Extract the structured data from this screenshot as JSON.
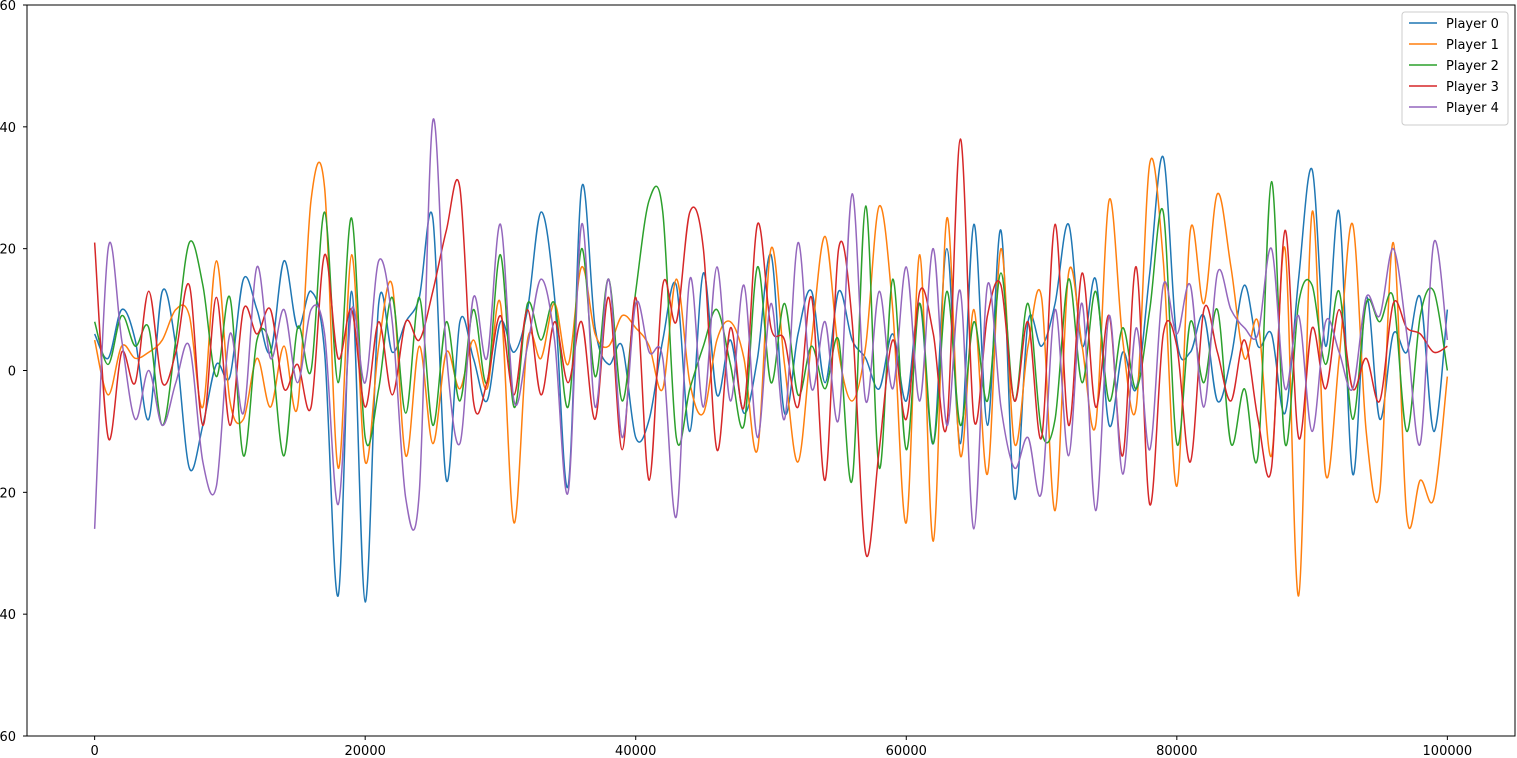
{
  "chart_data": {
    "type": "line",
    "title": "",
    "xlabel": "",
    "ylabel": "",
    "xlim": [
      -5000,
      105000
    ],
    "ylim": [
      -60,
      60
    ],
    "x_ticks": [
      0,
      20000,
      40000,
      60000,
      80000,
      100000
    ],
    "y_ticks": [
      -60,
      -40,
      -20,
      0,
      20,
      40,
      60
    ],
    "x_tick_labels": [
      "0",
      "20000",
      "40000",
      "60000",
      "80000",
      "100000"
    ],
    "y_tick_labels": [
      "60",
      "40",
      "20",
      "0",
      "20",
      "40",
      "60"
    ],
    "grid": false,
    "legend": "top-right",
    "x_step": 1000,
    "series": [
      {
        "name": "Player 0",
        "color": "#1f77b4",
        "values": [
          6,
          2,
          10,
          5,
          -8,
          13,
          4,
          -16,
          -9,
          1,
          -1,
          15,
          10,
          3,
          18,
          7,
          13,
          3,
          -37,
          13,
          -38,
          11,
          3,
          8,
          12,
          25,
          -18,
          8,
          2,
          -5,
          8,
          3,
          10,
          26,
          12,
          -19,
          30,
          7,
          1,
          4,
          -11,
          -8,
          5,
          14,
          -10,
          16,
          -4,
          5,
          -7,
          2,
          19,
          -7,
          6,
          13,
          -2,
          13,
          5,
          2,
          -3,
          6,
          -5,
          11,
          -12,
          20,
          -12,
          24,
          -9,
          23,
          -21,
          8,
          4,
          11,
          24,
          4,
          15,
          -9,
          3,
          -3,
          16,
          35,
          5,
          3,
          9,
          -5,
          2,
          14,
          4,
          6,
          -7,
          15,
          33,
          4,
          26,
          -17,
          12,
          -8,
          6,
          3,
          12,
          -10,
          10
        ]
      },
      {
        "name": "Player 1",
        "color": "#ff7f0e",
        "values": [
          5,
          -4,
          4,
          2,
          3,
          5,
          10,
          9,
          -6,
          18,
          -5,
          -8,
          2,
          -6,
          4,
          -6,
          28,
          30,
          -16,
          19,
          -15,
          4,
          14,
          -14,
          4,
          -12,
          3,
          -3,
          5,
          -3,
          11,
          -25,
          5,
          2,
          11,
          1,
          17,
          6,
          4,
          9,
          7,
          4,
          -3,
          15,
          -2,
          -7,
          5,
          8,
          2,
          -13,
          20,
          1,
          -15,
          5,
          22,
          3,
          -5,
          4,
          27,
          10,
          -25,
          19,
          -28,
          25,
          -14,
          10,
          -17,
          20,
          -12,
          4,
          12,
          -23,
          16,
          4,
          -9,
          28,
          5,
          -6,
          34,
          18,
          -19,
          23,
          11,
          29,
          17,
          2,
          8,
          -14,
          20,
          -37,
          26,
          -17,
          2,
          24,
          -10,
          -20,
          21,
          -24,
          -18,
          -21,
          -1
        ]
      },
      {
        "name": "Player 2",
        "color": "#2ca02c",
        "values": [
          8,
          1,
          9,
          4,
          7,
          -9,
          5,
          21,
          14,
          -1,
          12,
          -14,
          5,
          4,
          -14,
          7,
          0,
          26,
          -2,
          25,
          -11,
          -3,
          12,
          -7,
          12,
          -9,
          8,
          -5,
          10,
          -2,
          19,
          -6,
          11,
          5,
          11,
          -6,
          20,
          -1,
          15,
          -5,
          13,
          28,
          26,
          -11,
          -3,
          4,
          10,
          1,
          -9,
          17,
          -2,
          11,
          -4,
          4,
          -3,
          5,
          -18,
          27,
          -16,
          15,
          -13,
          11,
          -12,
          13,
          -9,
          8,
          -5,
          16,
          -5,
          11,
          -10,
          -8,
          15,
          -2,
          13,
          -5,
          7,
          -3,
          10,
          26,
          -12,
          8,
          -2,
          10,
          -12,
          -3,
          -14,
          31,
          -12,
          11,
          14,
          1,
          13,
          -8,
          11,
          8,
          12,
          -10,
          9,
          13,
          0
        ]
      },
      {
        "name": "Player 3",
        "color": "#d62728",
        "values": [
          21,
          -11,
          3,
          -2,
          13,
          -2,
          3,
          14,
          -9,
          12,
          -9,
          10,
          6,
          10,
          -3,
          1,
          -6,
          19,
          2,
          10,
          -6,
          8,
          -4,
          8,
          5,
          13,
          23,
          30,
          -5,
          -2,
          9,
          -4,
          10,
          -4,
          8,
          -2,
          8,
          -8,
          12,
          -13,
          12,
          -18,
          14,
          8,
          26,
          20,
          -13,
          7,
          -6,
          24,
          7,
          5,
          -6,
          12,
          -18,
          20,
          8,
          -30,
          -13,
          5,
          -8,
          13,
          6,
          -9,
          38,
          -8,
          9,
          14,
          -5,
          8,
          -11,
          24,
          -9,
          16,
          -6,
          9,
          -14,
          17,
          -22,
          6,
          4,
          -15,
          10,
          3,
          -5,
          5,
          -8,
          -16,
          23,
          -11,
          7,
          -3,
          10,
          -3,
          2,
          -5,
          11,
          7,
          6,
          3,
          4
        ]
      },
      {
        "name": "Player 4",
        "color": "#9467bd",
        "values": [
          -26,
          20,
          5,
          -8,
          0,
          -9,
          -2,
          4,
          -15,
          -19,
          6,
          -7,
          17,
          2,
          10,
          -2,
          10,
          6,
          -22,
          10,
          -2,
          18,
          8,
          -21,
          -20,
          41,
          3,
          -12,
          12,
          2,
          24,
          -5,
          4,
          15,
          5,
          -20,
          24,
          -6,
          15,
          -11,
          11,
          3,
          2,
          -24,
          15,
          -6,
          17,
          -5,
          14,
          -11,
          11,
          -8,
          21,
          -3,
          8,
          -8,
          29,
          -5,
          13,
          -3,
          17,
          -5,
          20,
          -9,
          13,
          -26,
          14,
          -6,
          -16,
          -11,
          -20,
          10,
          -14,
          11,
          -23,
          9,
          -17,
          7,
          -13,
          14,
          6,
          14,
          -6,
          16,
          10,
          7,
          6,
          20,
          -3,
          9,
          -10,
          8,
          3,
          -3,
          12,
          9,
          20,
          6,
          -12,
          21,
          5
        ]
      }
    ]
  }
}
